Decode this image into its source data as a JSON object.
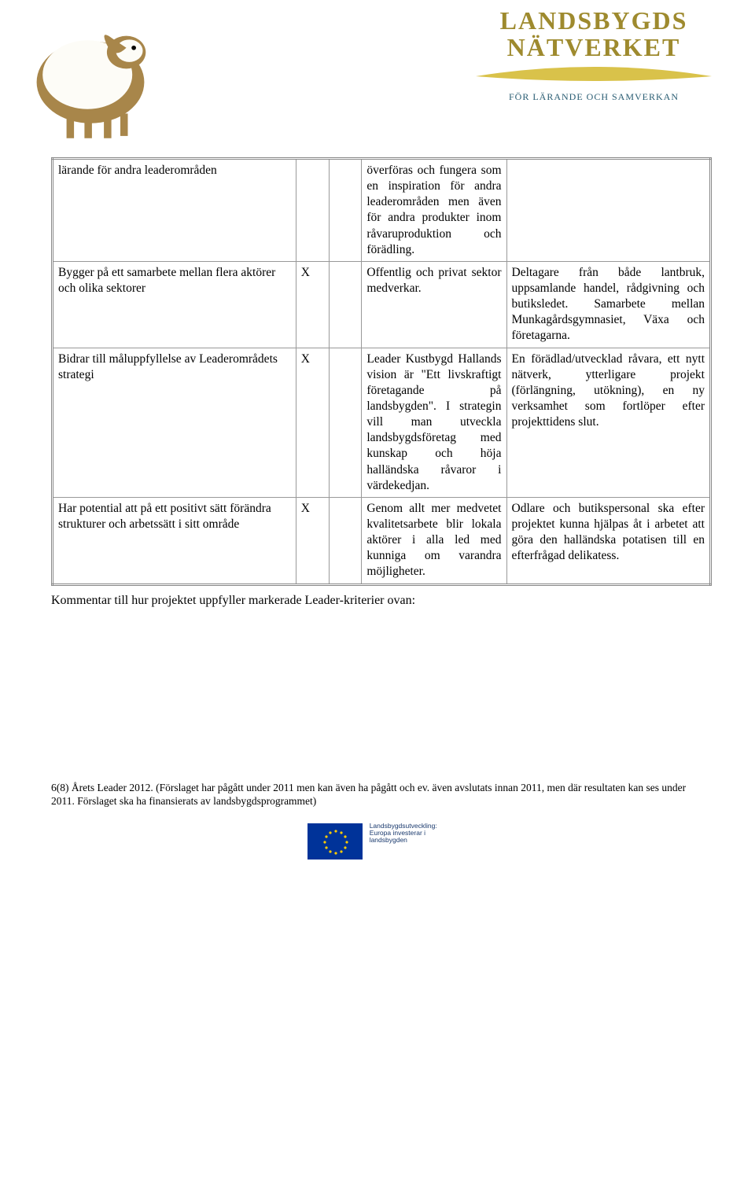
{
  "header": {
    "brand_line1": "LANDSBYGDS",
    "brand_line2": "NÄTVERKET",
    "brand_tag": "FÖR LÄRANDE OCH SAMVERKAN"
  },
  "table": {
    "rows": [
      {
        "criterion": "lärande för andra leaderområden",
        "mark1": "",
        "mark2": "",
        "desc": "överföras och fungera som en inspiration för andra leaderområden men även för andra produkter inom råvaruproduktion och förädling.",
        "result": ""
      },
      {
        "criterion": "Bygger på ett samarbete mellan flera aktörer och olika sektorer",
        "mark1": "X",
        "mark2": "",
        "desc": "Offentlig och privat sektor medverkar.",
        "result": "Deltagare från både lantbruk, uppsamlande handel, rådgivning och butiksledet. Samarbete mellan Munkagårdsgymnasiet, Växa och företagarna."
      },
      {
        "criterion": "Bidrar till måluppfyllelse av Leaderområdets strategi",
        "mark1": "X",
        "mark2": "",
        "desc": "Leader Kustbygd Hallands vision är \"Ett livskraftigt företagande på landsbygden\". I strategin vill man utveckla landsbygdsföretag med kunskap och höja halländska råvaror i värdekedjan.",
        "result": "En förädlad/utvecklad råvara, ett nytt nätverk, ytterligare projekt (förlängning, utökning), en ny verksamhet som fortlöper efter projekttidens slut."
      },
      {
        "criterion": "Har potential att på ett positivt sätt förändra strukturer och arbetssätt i sitt område",
        "mark1": "X",
        "mark2": "",
        "desc": "Genom allt mer medvetet kvalitetsarbete blir lokala aktörer i alla led med kunniga om varandra möjligheter.",
        "result": "Odlare och butikspersonal ska efter projektet kunna hjälpas åt i arbetet att göra den halländska potatisen till en efterfrågad delikatess."
      }
    ]
  },
  "comment_line": "Kommentar till hur projektet uppfyller markerade Leader-kriterier ovan:",
  "footer": {
    "page_line": "6(8) Årets Leader 2012. (Förslaget har pågått under 2011 men kan även ha pågått och ev. även avslutats innan 2011, men där resultaten kan ses under 2011. Förslaget ska ha finansierats av landsbygdsprogrammet)",
    "eu_text": "Landsbygdsutveckling: Europa investerar i landsbygden"
  },
  "colors": {
    "brand": "#9e8a2e",
    "tag": "#2a5d73",
    "border": "#999999",
    "sheep": "#a8864a"
  }
}
